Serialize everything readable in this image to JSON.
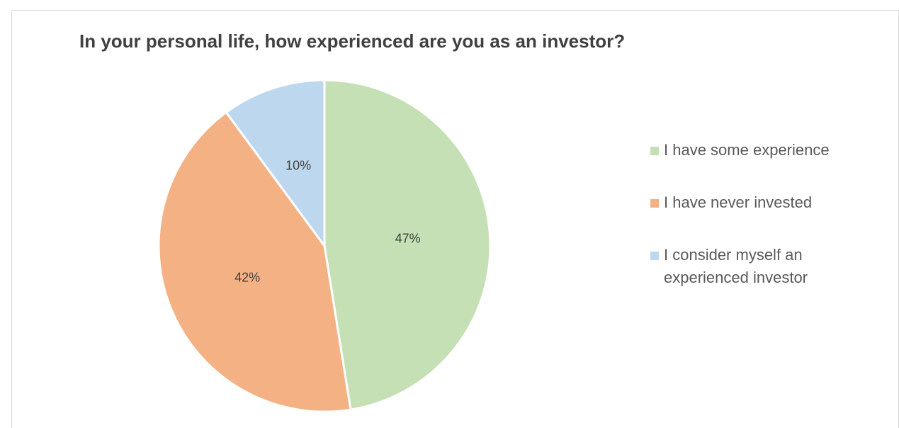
{
  "chart_data": {
    "type": "pie",
    "title": "In your personal life, how experienced are you as an investor?",
    "categories": [
      "I have some experience",
      "I have never invested",
      "I consider myself an experienced investor"
    ],
    "values": [
      47,
      42,
      10
    ],
    "value_labels": [
      "47%",
      "42%",
      "10%"
    ],
    "colors": [
      "#c5e0b4",
      "#f4b183",
      "#bdd7ee"
    ],
    "legend": "right"
  }
}
